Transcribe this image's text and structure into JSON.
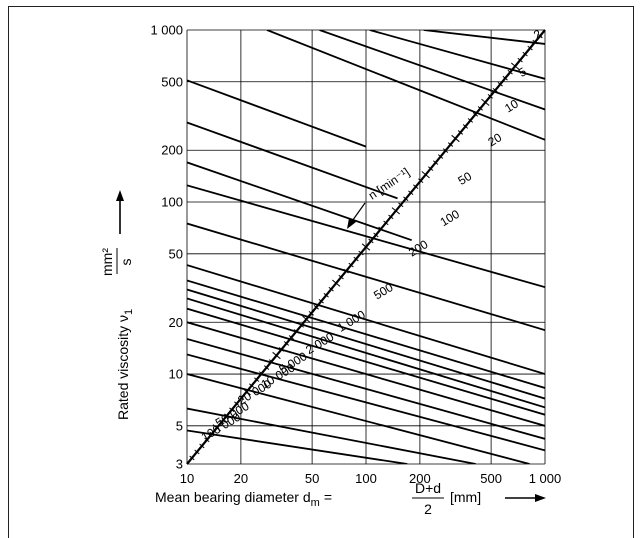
{
  "chart_data": {
    "type": "line",
    "x_scale": "log",
    "y_scale": "log",
    "xlim": [
      10,
      1000
    ],
    "ylim": [
      3,
      1000
    ],
    "grid": true,
    "x_ticks": [
      "10",
      "20",
      "50",
      "100",
      "200",
      "500",
      "1 000"
    ],
    "x_tick_values": [
      10,
      20,
      50,
      100,
      200,
      500,
      1000
    ],
    "y_ticks": [
      "3",
      "5",
      "10",
      "20",
      "50",
      "100",
      "200",
      "500",
      "1 000"
    ],
    "y_tick_values": [
      3,
      5,
      10,
      20,
      50,
      100,
      200,
      500,
      1000
    ],
    "xlabel": {
      "prefix": "Mean bearing diameter d",
      "sub": "m",
      "eq": "=",
      "num": "D+d",
      "den": "2",
      "unit": "[mm]"
    },
    "ylabel": {
      "prefix": "Rated viscosity ν",
      "sub": "1",
      "unit_num": "mm²",
      "unit_den": "s"
    },
    "speed_axis_label": "n [min⁻¹]",
    "speed_scale": {
      "start": [
        10,
        3
      ],
      "end": [
        1000,
        1000
      ]
    },
    "speed_labels": [
      {
        "text": "2",
        "pos": [
          900,
          880
        ]
      },
      {
        "text": "5",
        "pos": [
          740,
          530
        ]
      },
      {
        "text": "10",
        "pos": [
          620,
          330
        ]
      },
      {
        "text": "20",
        "pos": [
          500,
          210
        ]
      },
      {
        "text": "50",
        "pos": [
          340,
          125
        ]
      },
      {
        "text": "100",
        "pos": [
          270,
          72
        ]
      },
      {
        "text": "200",
        "pos": [
          180,
          48
        ]
      },
      {
        "text": "500",
        "pos": [
          115,
          27
        ]
      },
      {
        "text": "1 000",
        "pos": [
          72,
          17.5
        ]
      },
      {
        "text": "2 000",
        "pos": [
          48,
          13
        ]
      },
      {
        "text": "5 000",
        "pos": [
          34,
          10
        ]
      },
      {
        "text": "10 000",
        "pos": [
          27,
          8.2
        ]
      },
      {
        "text": "20 000",
        "pos": [
          20,
          6.6
        ]
      },
      {
        "text": "50 000",
        "pos": [
          15,
          4.9
        ]
      },
      {
        "text": "100 000",
        "pos": [
          12.5,
          4.05
        ]
      }
    ],
    "series": [
      {
        "values": [
          [
            28,
            1000
          ],
          [
            1000,
            230
          ]
        ]
      },
      {
        "values": [
          [
            55,
            1000
          ],
          [
            1000,
            345
          ]
        ]
      },
      {
        "values": [
          [
            105,
            1000
          ],
          [
            1000,
            520
          ]
        ]
      },
      {
        "values": [
          [
            210,
            1000
          ],
          [
            1000,
            830
          ]
        ]
      },
      {
        "values": [
          [
            10,
            510
          ],
          [
            100,
            210
          ]
        ]
      },
      {
        "values": [
          [
            10,
            290
          ],
          [
            150,
            105
          ]
        ]
      },
      {
        "values": [
          [
            10,
            170
          ],
          [
            180,
            60
          ]
        ]
      },
      {
        "values": [
          [
            10,
            125
          ],
          [
            1000,
            32
          ]
        ]
      },
      {
        "values": [
          [
            10,
            75
          ],
          [
            1000,
            18
          ]
        ]
      },
      {
        "values": [
          [
            10,
            43
          ],
          [
            1000,
            10
          ]
        ]
      },
      {
        "values": [
          [
            10,
            35
          ],
          [
            1000,
            8.3
          ]
        ]
      },
      {
        "values": [
          [
            10,
            31
          ],
          [
            1000,
            7.2
          ]
        ]
      },
      {
        "values": [
          [
            10,
            27.5
          ],
          [
            1000,
            6.4
          ]
        ]
      },
      {
        "values": [
          [
            10,
            24
          ],
          [
            1000,
            5.8
          ]
        ]
      },
      {
        "values": [
          [
            10,
            20
          ],
          [
            1000,
            5
          ]
        ]
      },
      {
        "values": [
          [
            10,
            16
          ],
          [
            1000,
            4.2
          ]
        ]
      },
      {
        "values": [
          [
            10,
            13
          ],
          [
            1000,
            3.6
          ]
        ]
      },
      {
        "values": [
          [
            10,
            10
          ],
          [
            820,
            3
          ]
        ]
      },
      {
        "values": [
          [
            10,
            6.3
          ],
          [
            410,
            3
          ]
        ]
      },
      {
        "values": [
          [
            10,
            4.7
          ],
          [
            170,
            3
          ]
        ]
      }
    ]
  }
}
